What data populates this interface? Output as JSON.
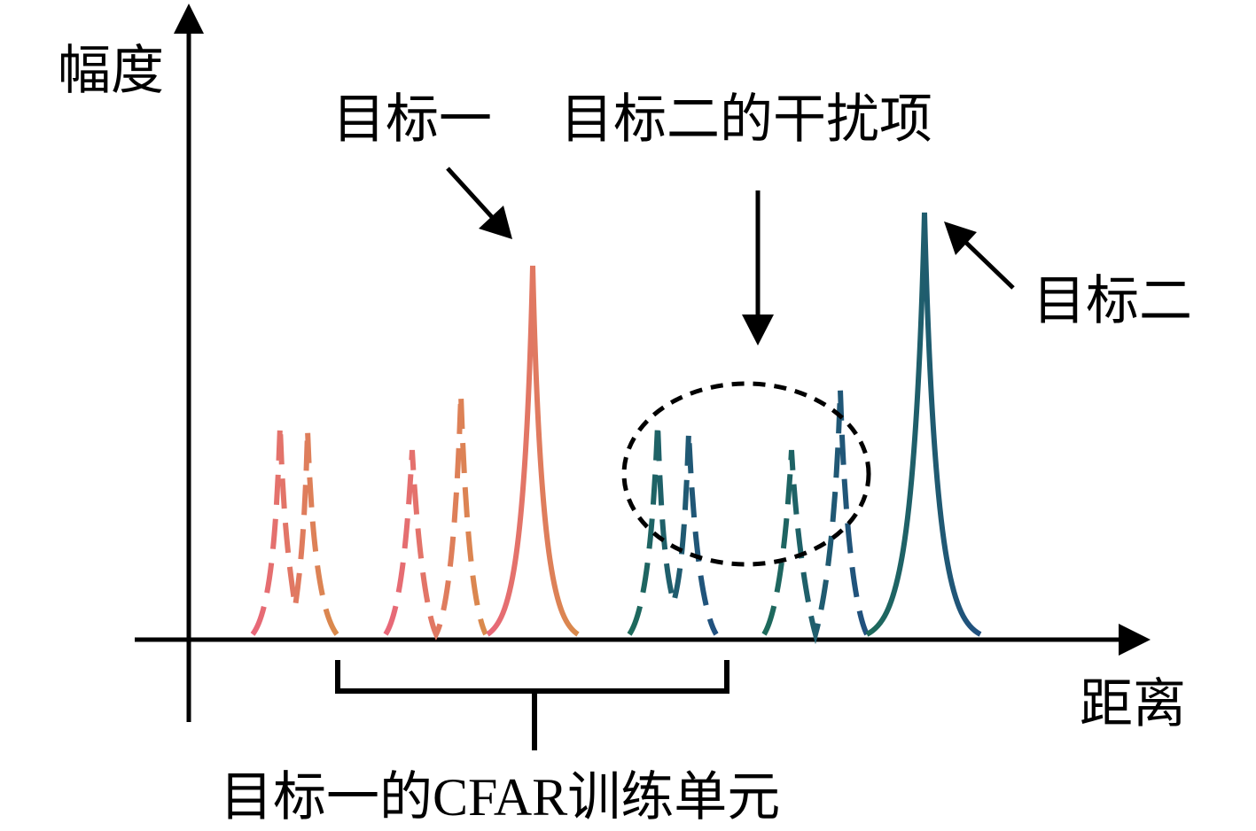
{
  "axes": {
    "y_label": "幅度",
    "x_label": "距离"
  },
  "annotations": {
    "target_one": "目标一",
    "target_two_interference": "目标二的干扰项",
    "target_two": "目标二",
    "training_cells": "目标一的CFAR训练单元"
  }
}
